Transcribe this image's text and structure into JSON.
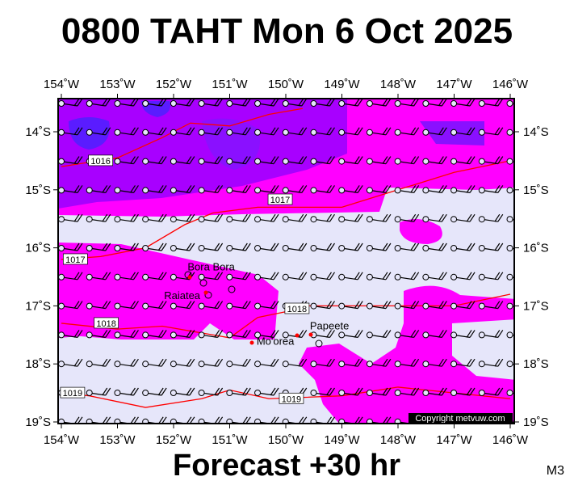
{
  "title": "0800 TAHT Mon 6 Oct 2025",
  "footer": "Forecast +30 hr",
  "model": "M3",
  "copyright": "Copyright metvuw.com",
  "lon_labels": [
    "154˚W",
    "153˚W",
    "152˚W",
    "151˚W",
    "150˚W",
    "149˚W",
    "148˚W",
    "147˚W",
    "146˚W"
  ],
  "lat_labels": [
    "14˚S",
    "15˚S",
    "16˚S",
    "17˚S",
    "18˚S",
    "19˚S"
  ],
  "places": [
    {
      "name": "Bora Bora",
      "lon": 151.75,
      "lat": 16.5
    },
    {
      "name": "Raiatea",
      "lon": 151.45,
      "lat": 16.83
    },
    {
      "name": "Mo'orea",
      "lon": 149.83,
      "lat": 17.53
    },
    {
      "name": "Papeete",
      "lon": 149.57,
      "lat": 17.53
    }
  ],
  "isobar_labels": [
    "1016",
    "1017",
    "1017",
    "1018",
    "1018",
    "1019",
    "1019"
  ],
  "colors": {
    "magenta": "#ff00ff",
    "purple": "#a800ff",
    "violet": "#8a10ff",
    "blue": "#5a1cff",
    "lavender": "#e6e6fa",
    "isobar": "#ff0000"
  }
}
